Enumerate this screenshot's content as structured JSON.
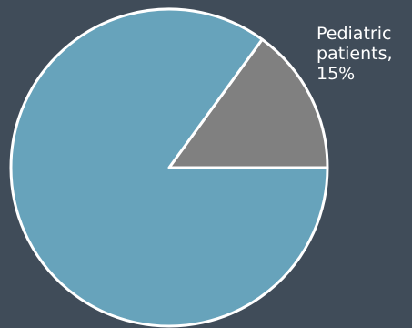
{
  "colors": {
    "background": "#404c59",
    "slice_pediatric": "#808080",
    "slice_other": "#67a3bb",
    "stroke": "#ffffff"
  },
  "chart_data": {
    "type": "pie",
    "title": "",
    "slices": [
      {
        "name": "Pediatric patients",
        "value": 15,
        "color": "#808080"
      },
      {
        "name": "",
        "value": 85,
        "color": "#67a3bb"
      }
    ],
    "start_angle_deg": 0,
    "direction": "counterclockwise",
    "legend": "none",
    "data_labels": [
      {
        "line1": "Pediatric",
        "line2": "patients,",
        "line3": "15%"
      }
    ]
  }
}
